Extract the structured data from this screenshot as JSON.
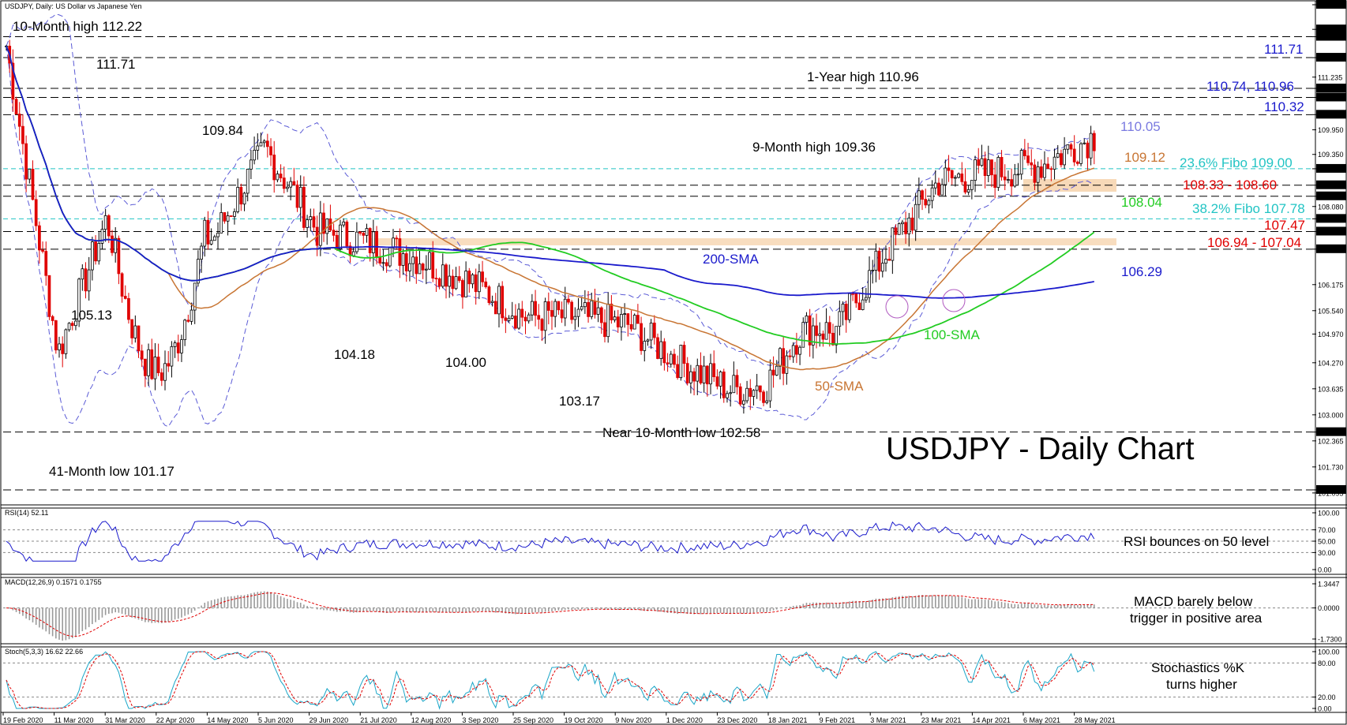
{
  "window": {
    "symbol_label": "USDJPY, Daily:  US Dollar vs Japanese Yen",
    "big_title": "USDJPY - Daily Chart"
  },
  "colors": {
    "price_up": "#000000",
    "price_down": "#e00000",
    "sma50": "#c87533",
    "sma100": "#22cc22",
    "sma200": "#1a1acc",
    "bollinger": "#5b5bd6",
    "fibo": "#22c4c4",
    "support_zone": "#f7d9b8",
    "rsi": "#1a1acc",
    "macd_hist": "#9a9a9a",
    "macd_signal": "#e00000",
    "stoch_k": "#1aa6c8",
    "stoch_d": "#e00000",
    "grid": "#000000"
  },
  "chart_data": [
    {
      "type": "candlestick",
      "name": "price",
      "ylim": [
        100.9,
        113.0
      ],
      "y_ticks": [
        "113.000",
        "112.400",
        "112.220",
        "111.710",
        "111.235",
        "110.960",
        "110.740",
        "110.320",
        "109.950",
        "109.350",
        "109.000",
        "108.600",
        "108.330",
        "108.080",
        "107.780",
        "107.470",
        "107.040",
        "106.175",
        "105.540",
        "104.970",
        "104.270",
        "103.635",
        "103.000",
        "102.580",
        "102.365",
        "101.730",
        "101.170",
        "101.095"
      ],
      "highlighted_ticks": [
        "113.000",
        "112.400",
        "112.220",
        "111.710",
        "110.960",
        "110.740",
        "110.320",
        "109.000",
        "108.600",
        "108.330",
        "107.780",
        "107.470",
        "107.040",
        "102.580",
        "101.170"
      ],
      "x_ticks": [
        "19 Feb 2020",
        "11 Mar 2020",
        "31 Mar 2020",
        "22 Apr 2020",
        "14 May 2020",
        "5 Jun 2020",
        "29 Jun 2020",
        "21 Jul 2020",
        "12 Aug 2020",
        "3 Sep 2020",
        "25 Sep 2020",
        "19 Oct 2020",
        "9 Nov 2020",
        "1 Dec 2020",
        "23 Dec 2020",
        "18 Jan 2021",
        "9 Feb 2021",
        "3 Mar 2021",
        "23 Mar 2021",
        "14 Apr 2021",
        "6 May 2021",
        "28 May 2021"
      ],
      "key_points": [
        {
          "label": "19 Feb 2020",
          "close": 112.0
        },
        {
          "label": "11 Mar 2020",
          "close": 104.5
        },
        {
          "label": "31 Mar 2020",
          "close": 108.0
        },
        {
          "label": "22 Apr 2020",
          "close": 107.5
        },
        {
          "label": "14 May 2020",
          "close": 107.3
        },
        {
          "label": "5 Jun 2020",
          "close": 109.5
        },
        {
          "label": "29 Jun 2020",
          "close": 107.5
        },
        {
          "label": "21 Jul 2020",
          "close": 107.2
        },
        {
          "label": "12 Aug 2020",
          "close": 106.8
        },
        {
          "label": "3 Sep 2020",
          "close": 106.2
        },
        {
          "label": "25 Sep 2020",
          "close": 105.4
        },
        {
          "label": "19 Oct 2020",
          "close": 105.4
        },
        {
          "label": "9 Nov 2020",
          "close": 105.2
        },
        {
          "label": "1 Dec 2020",
          "close": 104.3
        },
        {
          "label": "23 Dec 2020",
          "close": 103.6
        },
        {
          "label": "18 Jan 2021",
          "close": 103.8
        },
        {
          "label": "9 Feb 2021",
          "close": 105.0
        },
        {
          "label": "3 Mar 2021",
          "close": 107.0
        },
        {
          "label": "23 Mar 2021",
          "close": 108.7
        },
        {
          "label": "14 Apr 2021",
          "close": 108.9
        },
        {
          "label": "6 May 2021",
          "close": 109.1
        },
        {
          "label": "28 May 2021",
          "close": 109.8
        }
      ],
      "levels": [
        {
          "value": 112.22,
          "style": "dashed",
          "label": "10-Month high 112.22"
        },
        {
          "value": 111.71,
          "style": "dashed",
          "label": "111.71"
        },
        {
          "value": 110.96,
          "style": "dashed",
          "label": "110.74, 110.96"
        },
        {
          "value": 110.74,
          "style": "dashed"
        },
        {
          "value": 110.32,
          "style": "dashed",
          "label": "110.32"
        },
        {
          "value": 109.0,
          "style": "fibo",
          "label": "23.6% Fibo 109.00"
        },
        {
          "value": 108.6,
          "style": "dashed",
          "label": "108.33 - 108.60"
        },
        {
          "value": 108.33,
          "style": "dashed"
        },
        {
          "value": 107.78,
          "style": "fibo",
          "label": "38.2% Fibo 107.78"
        },
        {
          "value": 107.47,
          "style": "dashed",
          "label": "107.47"
        },
        {
          "value": 107.04,
          "style": "dashed",
          "label": "106.94 - 107.04"
        },
        {
          "value": 102.58,
          "style": "dashed"
        },
        {
          "value": 101.17,
          "style": "dashed"
        }
      ],
      "annotations": [
        {
          "text": "10-Month high 112.22",
          "color": "#000000"
        },
        {
          "text": "111.71",
          "color": "#000000"
        },
        {
          "text": "109.84",
          "color": "#000000"
        },
        {
          "text": "105.13",
          "color": "#000000"
        },
        {
          "text": "104.18",
          "color": "#000000"
        },
        {
          "text": "104.00",
          "color": "#000000"
        },
        {
          "text": "103.17",
          "color": "#000000"
        },
        {
          "text": "Near 10-Month low 102.58",
          "color": "#000000"
        },
        {
          "text": "41-Month low 101.17",
          "color": "#000000"
        },
        {
          "text": "1-Year high 110.96",
          "color": "#000000"
        },
        {
          "text": "9-Month high 109.36",
          "color": "#000000"
        },
        {
          "text": "200-SMA",
          "color": "#1a1acc"
        },
        {
          "text": "100-SMA",
          "color": "#22cc22"
        },
        {
          "text": "50-SMA",
          "color": "#c87533"
        },
        {
          "text": "111.71",
          "color": "#1a1acc"
        },
        {
          "text": "110.74, 110.96",
          "color": "#1a1acc"
        },
        {
          "text": "110.32",
          "color": "#1a1acc"
        },
        {
          "text": "110.05",
          "color": "#7a7ae0"
        },
        {
          "text": "109.12",
          "color": "#c87533"
        },
        {
          "text": "23.6% Fibo 109.00",
          "color": "#22c4c4"
        },
        {
          "text": "108.33 - 108.60",
          "color": "#e00000"
        },
        {
          "text": "108.04",
          "color": "#22cc22"
        },
        {
          "text": "38.2% Fibo 107.78",
          "color": "#22c4c4"
        },
        {
          "text": "107.47",
          "color": "#e00000"
        },
        {
          "text": "106.94 - 107.04",
          "color": "#e00000"
        },
        {
          "text": "106.29",
          "color": "#1a1acc"
        }
      ]
    },
    {
      "type": "line",
      "name": "RSI",
      "header": "RSI(14) 52.11",
      "ylim": [
        0,
        100
      ],
      "y_ticks": [
        "100.00",
        "70.00",
        "50.00",
        "30.00",
        "0.00"
      ],
      "note": "RSI bounces on 50 level"
    },
    {
      "type": "bar",
      "name": "MACD",
      "header": "MACD(12,26,9) 0.1571 0.1755",
      "y_ticks": [
        "1.3447",
        "0.0000",
        "-1.7300"
      ],
      "note": "MACD barely below trigger in positive area"
    },
    {
      "type": "line",
      "name": "Stochastics",
      "header": "Stoch(5,3,3) 16.62 22.66",
      "ylim": [
        0,
        100
      ],
      "y_ticks": [
        "100.00",
        "80.00",
        "20.00",
        "0.00"
      ],
      "note": "Stochastics %K turns higher"
    }
  ],
  "text": {
    "annot_high": "10-Month high 112.22",
    "annot_11171": "111.71",
    "annot_10984": "109.84",
    "annot_10513": "105.13",
    "annot_10418": "104.18",
    "annot_10400": "104.00",
    "annot_10317": "103.17",
    "annot_low10": "Near 10-Month low 102.58",
    "annot_low41": "41-Month low 101.17",
    "annot_1yhigh": "1-Year high 110.96",
    "annot_9mhigh": "9-Month high 109.36",
    "sma200": "200-SMA",
    "sma100": "100-SMA",
    "sma50": "50-SMA",
    "r_11171": "111.71",
    "r_11074": "110.74, 110.96",
    "r_11032": "110.32",
    "r_11005": "110.05",
    "r_10912": "109.12",
    "r_fibo236": "23.6% Fibo 109.00",
    "r_10833": "108.33 - 108.60",
    "r_10804": "108.04",
    "r_fibo382": "38.2% Fibo 107.78",
    "r_10747": "107.47",
    "r_10694": "106.94 - 107.04",
    "r_10629": "106.29",
    "rsi_note": "RSI bounces on 50 level",
    "macd_note_1": "MACD barely below",
    "macd_note_2": "trigger in positive area",
    "stoch_note_1": "Stochastics %K",
    "stoch_note_2": "turns higher"
  }
}
